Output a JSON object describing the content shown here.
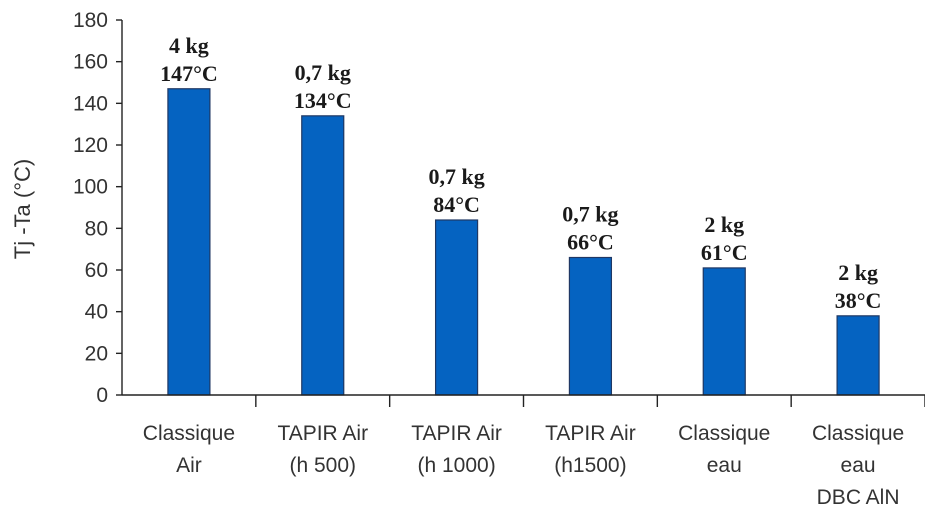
{
  "chart_data": {
    "type": "bar",
    "title": "",
    "xlabel": "",
    "ylabel": "Tj -Ta (°C)",
    "ylim": [
      0,
      180
    ],
    "yticks": [
      0,
      20,
      40,
      60,
      80,
      100,
      120,
      140,
      160,
      180
    ],
    "grid": false,
    "categories": [
      [
        "Classique",
        "Air"
      ],
      [
        "TAPIR Air",
        "(h 500)"
      ],
      [
        "TAPIR Air",
        "(h 1000)"
      ],
      [
        "TAPIR Air",
        "(h1500)"
      ],
      [
        "Classique",
        "eau"
      ],
      [
        "Classique",
        "eau",
        "DBC AlN"
      ]
    ],
    "values": [
      147,
      134,
      84,
      66,
      61,
      38
    ],
    "data_labels": [
      [
        "4 kg",
        "147°C"
      ],
      [
        "0,7 kg",
        "134°C"
      ],
      [
        "0,7 kg",
        "84°C"
      ],
      [
        "0,7 kg",
        "66°C"
      ],
      [
        "2 kg",
        "61°C"
      ],
      [
        "2 kg",
        "38°C"
      ]
    ],
    "bar_color": "#0563c1"
  }
}
